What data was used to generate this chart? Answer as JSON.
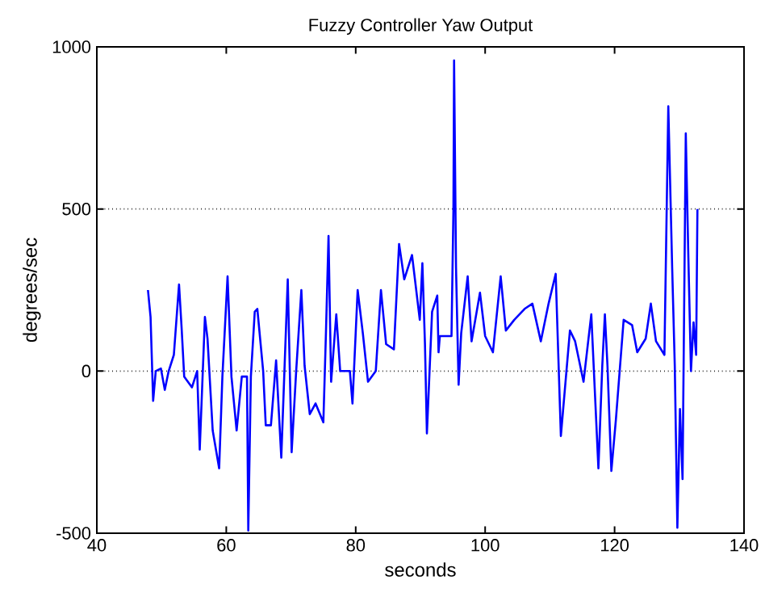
{
  "chart_data": {
    "type": "line",
    "title": "Fuzzy Controller Yaw Output",
    "xlabel": "seconds",
    "ylabel": "degrees/sec",
    "xlim": [
      40,
      140
    ],
    "xticks": [
      40,
      60,
      80,
      100,
      120,
      140
    ],
    "ylim": [
      -500,
      1000
    ],
    "yticks": [
      -500,
      0,
      500,
      1000
    ],
    "grid": "y",
    "line_style": "solid",
    "marker": "none",
    "series": [
      {
        "color": "#0000ff",
        "x": [
          47.9,
          48.3,
          48.7,
          49.1,
          49.9,
          50.5,
          51.1,
          51.9,
          52.7,
          53.1,
          53.5,
          54.7,
          55.5,
          55.9,
          56.7,
          57.1,
          57.9,
          58.9,
          59.4,
          60.2,
          60.8,
          61.6,
          62.4,
          63.2,
          63.4,
          63.8,
          64.4,
          64.8,
          65.7,
          66.1,
          66.9,
          67.7,
          68.5,
          69.5,
          70.1,
          70.8,
          71.6,
          72.1,
          72.9,
          73.8,
          75.0,
          75.4,
          75.8,
          76.2,
          77.0,
          77.6,
          79.1,
          79.5,
          80.3,
          81.1,
          81.9,
          83.1,
          83.9,
          84.7,
          85.9,
          86.7,
          87.5,
          88.7,
          89.9,
          90.3,
          90.7,
          91.0,
          91.8,
          92.6,
          92.8,
          93.0,
          94.8,
          95.1,
          95.2,
          95.5,
          95.9,
          96.3,
          97.3,
          97.9,
          99.2,
          100.0,
          101.2,
          102.4,
          103.2,
          104.5,
          106.1,
          107.3,
          108.6,
          109.8,
          110.9,
          111.7,
          113.1,
          113.9,
          115.2,
          116.4,
          117.5,
          118.1,
          118.5,
          118.9,
          119.5,
          120.2,
          121.4,
          122.7,
          123.5,
          124.8,
          125.6,
          126.4,
          127.7,
          128.3,
          128.9,
          129.3,
          129.7,
          130.1,
          130.5,
          131.0,
          131.4,
          131.8,
          132.2,
          132.6,
          132.8
        ],
        "values": [
          250,
          167,
          -92,
          0,
          8,
          -58,
          0,
          50,
          267,
          133,
          -17,
          -50,
          0,
          -242,
          167,
          100,
          -183,
          -300,
          -17,
          292,
          -17,
          -183,
          -17,
          -17,
          -492,
          -17,
          183,
          192,
          0,
          -167,
          -167,
          33,
          -267,
          283,
          -250,
          0,
          250,
          17,
          -133,
          -100,
          -158,
          117,
          417,
          -33,
          175,
          0,
          0,
          -100,
          250,
          117,
          -33,
          0,
          250,
          83,
          67,
          392,
          283,
          358,
          158,
          333,
          83,
          -192,
          183,
          233,
          58,
          108,
          108,
          500,
          958,
          317,
          -42,
          117,
          292,
          92,
          242,
          108,
          58,
          292,
          125,
          158,
          192,
          208,
          92,
          208,
          300,
          -200,
          125,
          92,
          -33,
          175,
          -300,
          17,
          175,
          17,
          -308,
          -150,
          158,
          142,
          58,
          100,
          208,
          92,
          50,
          817,
          317,
          17,
          -483,
          -117,
          -333,
          733,
          350,
          0,
          150,
          50,
          500
        ]
      }
    ]
  }
}
